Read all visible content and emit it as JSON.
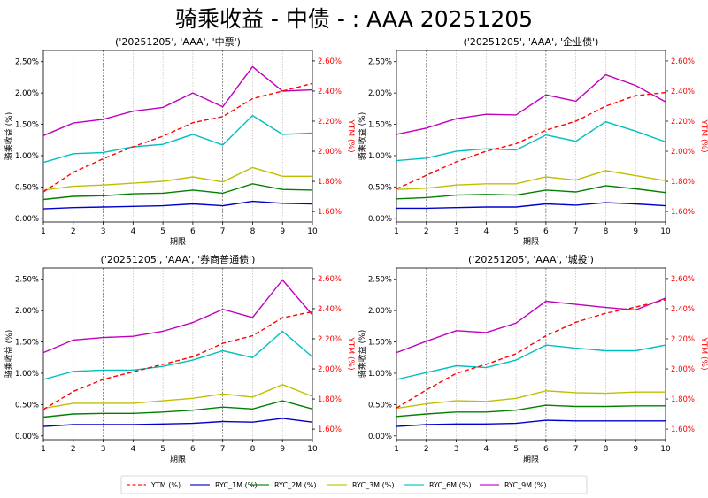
{
  "title": "骑乘收益 - 中债 - : AAA 20251205",
  "colors": {
    "YTM": "#ff0000",
    "RYC_1M": "#0000cc",
    "RYC_2M": "#008000",
    "RYC_3M": "#bfbf00",
    "RYC_6M": "#00bfbf",
    "RYC_9M": "#bf00bf"
  },
  "legend": {
    "placement": "bottom-center",
    "entries": [
      "YTM (%)",
      "RYC_1M (%)",
      "RYC_2M (%)",
      "RYC_3M (%)",
      "RYC_6M (%)",
      "RYC_9M (%)"
    ]
  },
  "chart_data": [
    {
      "type": "line",
      "title": "('20251205', 'AAA', '中票')",
      "xlabel": "期限",
      "ylabel": "骑乘收益 (%)",
      "y2label": "YTM (%)",
      "x": [
        1,
        2,
        3,
        4,
        5,
        6,
        7,
        8,
        9,
        10
      ],
      "xticks": [
        "1",
        "2",
        "3",
        "4",
        "5",
        "6",
        "7",
        "8",
        "9",
        "10"
      ],
      "yticks": [
        "0.00%",
        "0.50%",
        "1.00%",
        "1.50%",
        "2.00%",
        "2.50%"
      ],
      "y2ticks": [
        "1.60%",
        "1.80%",
        "2.00%",
        "2.20%",
        "2.40%",
        "2.60%"
      ],
      "ylim": [
        -0.06,
        2.68
      ],
      "y2lim": [
        1.53,
        2.67
      ],
      "grid": "vertical",
      "dark_vlines": [
        3,
        7
      ],
      "series": [
        {
          "name": "YTM (%)",
          "axis": "right",
          "values": [
            1.73,
            1.86,
            1.95,
            2.03,
            2.1,
            2.19,
            2.23,
            2.35,
            2.4,
            2.45
          ]
        },
        {
          "name": "RYC_1M (%)",
          "axis": "left",
          "values": [
            0.15,
            0.17,
            0.18,
            0.19,
            0.2,
            0.23,
            0.2,
            0.27,
            0.24,
            0.23
          ]
        },
        {
          "name": "RYC_2M (%)",
          "axis": "left",
          "values": [
            0.3,
            0.35,
            0.36,
            0.39,
            0.4,
            0.45,
            0.4,
            0.55,
            0.46,
            0.45
          ]
        },
        {
          "name": "RYC_3M (%)",
          "axis": "left",
          "values": [
            0.45,
            0.51,
            0.53,
            0.56,
            0.59,
            0.66,
            0.58,
            0.81,
            0.67,
            0.67
          ]
        },
        {
          "name": "RYC_6M (%)",
          "axis": "left",
          "values": [
            0.89,
            1.03,
            1.05,
            1.14,
            1.18,
            1.34,
            1.17,
            1.64,
            1.34,
            1.36
          ]
        },
        {
          "name": "RYC_9M (%)",
          "axis": "left",
          "values": [
            1.32,
            1.52,
            1.58,
            1.71,
            1.77,
            2.0,
            1.78,
            2.42,
            2.03,
            2.05
          ]
        }
      ]
    },
    {
      "type": "line",
      "title": "('20251205', 'AAA', '企业债')",
      "xlabel": "期限",
      "ylabel": "骑乘收益 (%)",
      "y2label": "YTM (%)",
      "x": [
        1,
        2,
        3,
        4,
        5,
        6,
        7,
        8,
        9,
        10
      ],
      "xticks": [
        "1",
        "2",
        "3",
        "4",
        "5",
        "6",
        "7",
        "8",
        "9",
        "10"
      ],
      "yticks": [
        "0.00%",
        "0.50%",
        "1.00%",
        "1.50%",
        "2.00%",
        "2.50%"
      ],
      "y2ticks": [
        "1.60%",
        "1.80%",
        "2.00%",
        "2.20%",
        "2.40%",
        "2.60%"
      ],
      "ylim": [
        -0.06,
        2.68
      ],
      "y2lim": [
        1.53,
        2.67
      ],
      "grid": "vertical",
      "dark_vlines": [
        2,
        6
      ],
      "series": [
        {
          "name": "YTM (%)",
          "axis": "right",
          "values": [
            1.75,
            1.84,
            1.93,
            2.0,
            2.05,
            2.14,
            2.2,
            2.3,
            2.37,
            2.39
          ]
        },
        {
          "name": "RYC_1M (%)",
          "axis": "left",
          "values": [
            0.16,
            0.16,
            0.17,
            0.18,
            0.18,
            0.23,
            0.21,
            0.25,
            0.23,
            0.2
          ]
        },
        {
          "name": "RYC_2M (%)",
          "axis": "left",
          "values": [
            0.31,
            0.33,
            0.37,
            0.38,
            0.37,
            0.45,
            0.42,
            0.52,
            0.47,
            0.41
          ]
        },
        {
          "name": "RYC_3M (%)",
          "axis": "left",
          "values": [
            0.46,
            0.48,
            0.53,
            0.55,
            0.55,
            0.66,
            0.61,
            0.76,
            0.68,
            0.6
          ]
        },
        {
          "name": "RYC_6M (%)",
          "axis": "left",
          "values": [
            0.92,
            0.96,
            1.07,
            1.11,
            1.09,
            1.33,
            1.23,
            1.54,
            1.39,
            1.22
          ]
        },
        {
          "name": "RYC_9M (%)",
          "axis": "left",
          "values": [
            1.34,
            1.44,
            1.59,
            1.66,
            1.65,
            1.97,
            1.87,
            2.29,
            2.12,
            1.86
          ]
        }
      ]
    },
    {
      "type": "line",
      "title": "('20251205', 'AAA', '券商普通债')",
      "xlabel": "期限",
      "ylabel": "骑乘收益 (%)",
      "y2label": "YTM (%)",
      "x": [
        1,
        2,
        3,
        4,
        5,
        6,
        7,
        8,
        9,
        10
      ],
      "xticks": [
        "1",
        "2",
        "3",
        "4",
        "5",
        "6",
        "7",
        "8",
        "9",
        "10"
      ],
      "yticks": [
        "0.00%",
        "0.50%",
        "1.00%",
        "1.50%",
        "2.00%",
        "2.50%"
      ],
      "y2ticks": [
        "1.60%",
        "1.80%",
        "2.00%",
        "2.20%",
        "2.40%",
        "2.60%"
      ],
      "ylim": [
        -0.06,
        2.68
      ],
      "y2lim": [
        1.53,
        2.67
      ],
      "grid": "vertical",
      "dark_vlines": [
        3,
        7
      ],
      "series": [
        {
          "name": "YTM (%)",
          "axis": "right",
          "values": [
            1.73,
            1.85,
            1.93,
            1.98,
            2.03,
            2.08,
            2.17,
            2.22,
            2.34,
            2.38
          ]
        },
        {
          "name": "RYC_1M (%)",
          "axis": "left",
          "values": [
            0.15,
            0.18,
            0.18,
            0.18,
            0.19,
            0.2,
            0.23,
            0.22,
            0.28,
            0.22
          ]
        },
        {
          "name": "RYC_2M (%)",
          "axis": "left",
          "values": [
            0.3,
            0.35,
            0.36,
            0.36,
            0.38,
            0.41,
            0.46,
            0.43,
            0.56,
            0.43
          ]
        },
        {
          "name": "RYC_3M (%)",
          "axis": "left",
          "values": [
            0.44,
            0.52,
            0.52,
            0.52,
            0.56,
            0.6,
            0.67,
            0.62,
            0.82,
            0.63
          ]
        },
        {
          "name": "RYC_6M (%)",
          "axis": "left",
          "values": [
            0.9,
            1.03,
            1.05,
            1.05,
            1.11,
            1.21,
            1.36,
            1.25,
            1.67,
            1.26
          ]
        },
        {
          "name": "RYC_9M (%)",
          "axis": "left",
          "values": [
            1.33,
            1.53,
            1.57,
            1.59,
            1.67,
            1.81,
            2.02,
            1.89,
            2.49,
            1.93
          ]
        }
      ]
    },
    {
      "type": "line",
      "title": "('20251205', 'AAA', '城投')",
      "xlabel": "期限",
      "ylabel": "骑乘收益 (%)",
      "y2label": "YTM (%)",
      "x": [
        1,
        2,
        3,
        4,
        5,
        6,
        7,
        8,
        9,
        10
      ],
      "xticks": [
        "1",
        "2",
        "3",
        "4",
        "5",
        "6",
        "7",
        "8",
        "9",
        "10"
      ],
      "yticks": [
        "0.00%",
        "0.50%",
        "1.00%",
        "1.50%",
        "2.00%",
        "2.50%"
      ],
      "y2ticks": [
        "1.60%",
        "1.80%",
        "2.00%",
        "2.20%",
        "2.40%",
        "2.60%"
      ],
      "ylim": [
        -0.06,
        2.68
      ],
      "y2lim": [
        1.53,
        2.67
      ],
      "grid": "vertical",
      "dark_vlines": [
        2,
        6
      ],
      "series": [
        {
          "name": "YTM (%)",
          "axis": "right",
          "values": [
            1.74,
            1.86,
            1.97,
            2.03,
            2.1,
            2.22,
            2.31,
            2.37,
            2.41,
            2.46
          ]
        },
        {
          "name": "RYC_1M (%)",
          "axis": "left",
          "values": [
            0.15,
            0.18,
            0.19,
            0.19,
            0.2,
            0.25,
            0.24,
            0.24,
            0.24,
            0.24
          ]
        },
        {
          "name": "RYC_2M (%)",
          "axis": "left",
          "values": [
            0.31,
            0.35,
            0.38,
            0.38,
            0.41,
            0.49,
            0.47,
            0.47,
            0.48,
            0.48
          ]
        },
        {
          "name": "RYC_3M (%)",
          "axis": "left",
          "values": [
            0.44,
            0.51,
            0.56,
            0.55,
            0.6,
            0.72,
            0.69,
            0.68,
            0.7,
            0.7
          ]
        },
        {
          "name": "RYC_6M (%)",
          "axis": "left",
          "values": [
            0.9,
            1.01,
            1.12,
            1.09,
            1.21,
            1.45,
            1.4,
            1.36,
            1.36,
            1.45
          ]
        },
        {
          "name": "RYC_9M (%)",
          "axis": "left",
          "values": [
            1.33,
            1.51,
            1.68,
            1.65,
            1.8,
            2.15,
            2.1,
            2.05,
            2.01,
            2.2
          ]
        }
      ]
    }
  ]
}
